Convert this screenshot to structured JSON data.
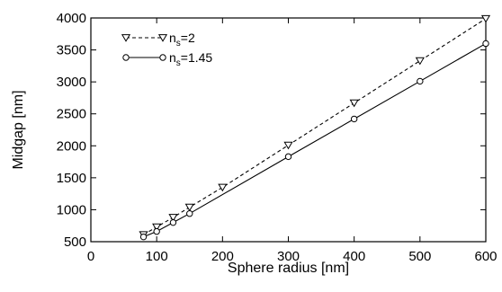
{
  "chart_data": {
    "type": "line",
    "xlabel": "Sphere radius [nm]",
    "ylabel": "Midgap [nm]",
    "xlim": [
      0,
      600
    ],
    "ylim": [
      500,
      4000
    ],
    "xticks": [
      0,
      100,
      200,
      300,
      400,
      500,
      600
    ],
    "yticks": [
      500,
      1000,
      1500,
      2000,
      2500,
      3000,
      3500,
      4000
    ],
    "grid": false,
    "legend_position": "top-left",
    "series": [
      {
        "name": "n_s=2",
        "name_main": "n",
        "name_sub": "s",
        "name_rest": "=2",
        "line_style": "dashed",
        "marker": "triangle-down",
        "color": "#000000",
        "points": [
          [
            80,
            610
          ],
          [
            100,
            730
          ],
          [
            125,
            880
          ],
          [
            150,
            1040
          ],
          [
            200,
            1350
          ],
          [
            300,
            2010
          ],
          [
            400,
            2670
          ],
          [
            500,
            3330
          ],
          [
            600,
            3990
          ]
        ]
      },
      {
        "name": "n_s=1.45",
        "name_main": "n",
        "name_sub": "s",
        "name_rest": "=1.45",
        "line_style": "solid",
        "marker": "circle",
        "color": "#000000",
        "points": [
          [
            80,
            575
          ],
          [
            100,
            660
          ],
          [
            125,
            800
          ],
          [
            150,
            940
          ],
          [
            300,
            1830
          ],
          [
            400,
            2420
          ],
          [
            500,
            3010
          ],
          [
            600,
            3600
          ]
        ]
      }
    ]
  }
}
